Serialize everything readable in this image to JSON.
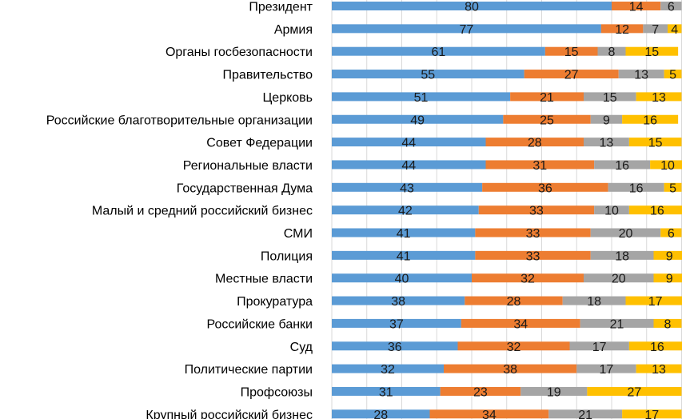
{
  "chart_data": {
    "type": "bar",
    "orientation": "horizontal",
    "stacked": true,
    "title": "",
    "xlabel": "",
    "ylabel": "",
    "xlim": [
      0,
      100
    ],
    "grid": true,
    "legend": "none",
    "categories": [
      "Президент",
      "Армия",
      "Органы госбезопасности",
      "Правительство",
      "Церковь",
      "Российские благотворительные организации",
      "Совет Федерации",
      "Региональные власти",
      "Государственная Дума",
      "Малый и средний российский бизнес",
      "СМИ",
      "Полиция",
      "Местные власти",
      "Прокуратура",
      "Российские банки",
      "Суд",
      "Политические партии",
      "Профсоюзы",
      "Крупный российский бизнес"
    ],
    "series": [
      {
        "name": "series-1",
        "color": "#5b9bd5",
        "values": [
          80,
          77,
          61,
          55,
          51,
          49,
          44,
          44,
          43,
          42,
          41,
          41,
          40,
          38,
          37,
          36,
          32,
          31,
          28
        ]
      },
      {
        "name": "series-2",
        "color": "#ed7d31",
        "values": [
          14,
          12,
          15,
          27,
          21,
          25,
          28,
          31,
          36,
          33,
          33,
          33,
          32,
          28,
          34,
          32,
          38,
          23,
          34
        ]
      },
      {
        "name": "series-3",
        "color": "#a5a5a5",
        "values": [
          6,
          7,
          8,
          13,
          15,
          9,
          13,
          16,
          16,
          10,
          20,
          18,
          20,
          18,
          21,
          17,
          17,
          19,
          21
        ]
      },
      {
        "name": "series-4",
        "color": "#ffc000",
        "values": [
          0,
          4,
          15,
          5,
          13,
          16,
          15,
          10,
          5,
          16,
          6,
          9,
          9,
          17,
          8,
          16,
          13,
          27,
          17
        ]
      }
    ]
  }
}
